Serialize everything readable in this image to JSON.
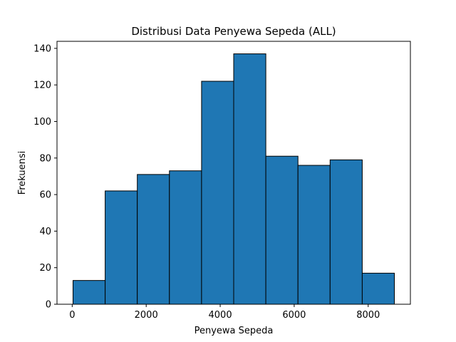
{
  "chart_data": {
    "type": "bar",
    "title": "Distribusi Data Penyewa Sepeda (ALL)",
    "xlabel": "Penyewa Sepeda",
    "ylabel": "Frekuensi",
    "bin_edges": [
      22,
      890.6,
      1759.2,
      2627.8,
      3496.4,
      4365,
      5233.6,
      6102.2,
      6970.8,
      7839.4,
      8708
    ],
    "values": [
      13,
      62,
      71,
      73,
      122,
      137,
      81,
      76,
      79,
      17
    ],
    "xlim": [
      -411,
      9141
    ],
    "ylim": [
      0,
      143.85
    ],
    "xticks": [
      0,
      2000,
      4000,
      6000,
      8000
    ],
    "yticks": [
      0,
      20,
      40,
      60,
      80,
      100,
      120,
      140
    ],
    "grid": false,
    "bar_color": "#1f77b4",
    "edge_color": "#000000"
  }
}
